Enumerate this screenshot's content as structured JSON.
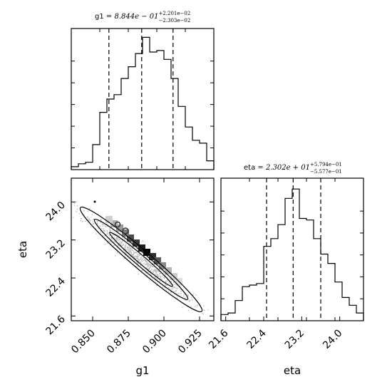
{
  "chart_data": [
    {
      "type": "histogram",
      "panel": "g1-marginal",
      "param": "g1",
      "title": {
        "name": "g1",
        "eq": " = ",
        "value": "8.844e − 01",
        "plus": "+2.201e−02",
        "minus": "−2.303e−02"
      },
      "xlim": [
        0.835,
        0.935
      ],
      "bins": [
        0.835,
        0.84,
        0.845,
        0.85,
        0.855,
        0.86,
        0.865,
        0.87,
        0.875,
        0.88,
        0.885,
        0.89,
        0.895,
        0.9,
        0.905,
        0.91,
        0.915,
        0.92,
        0.925,
        0.93,
        0.935
      ],
      "counts": [
        2,
        4,
        5,
        17,
        39,
        48,
        51,
        62,
        70,
        79,
        90,
        80,
        81,
        75,
        62,
        43,
        29,
        20,
        18,
        6
      ],
      "ylim": [
        0,
        96
      ],
      "quantiles": [
        0.8614,
        0.8844,
        0.9064
      ]
    },
    {
      "type": "contour",
      "panel": "g1-eta-joint",
      "xlabel": "g1",
      "ylabel": "eta",
      "xlim": [
        0.835,
        0.935
      ],
      "ylim": [
        21.5,
        24.5
      ],
      "xticks": [
        "0.850",
        "0.875",
        "0.900",
        "0.925"
      ],
      "yticks": [
        "21.6",
        "22.4",
        "23.2",
        "24.0"
      ],
      "xtick_values": [
        0.85,
        0.875,
        0.9,
        0.925
      ],
      "ytick_values": [
        21.6,
        22.4,
        23.2,
        24.0
      ]
    },
    {
      "type": "histogram",
      "panel": "eta-marginal",
      "param": "eta",
      "xlabel": "eta",
      "title": {
        "name": "eta",
        "eq": " = ",
        "value": "2.302e + 01",
        "plus": "+5.794e−01",
        "minus": "−5.577e−01"
      },
      "xlim": [
        21.5,
        24.5
      ],
      "bins": [
        21.5,
        21.65,
        21.8,
        21.95,
        22.1,
        22.25,
        22.4,
        22.55,
        22.7,
        22.85,
        23.0,
        23.15,
        23.3,
        23.45,
        23.6,
        23.75,
        23.9,
        24.05,
        24.2,
        24.35,
        24.5
      ],
      "counts": [
        4,
        5,
        13,
        22,
        23,
        24,
        48,
        53,
        62,
        79,
        85,
        66,
        65,
        53,
        43,
        37,
        25,
        15,
        10,
        5
      ],
      "ylim": [
        0,
        92
      ],
      "xticks": [
        "21.6",
        "22.4",
        "23.2",
        "24.0"
      ],
      "xtick_values": [
        21.6,
        22.4,
        23.2,
        24.0
      ],
      "quantiles": [
        22.46,
        23.02,
        23.6
      ]
    }
  ]
}
